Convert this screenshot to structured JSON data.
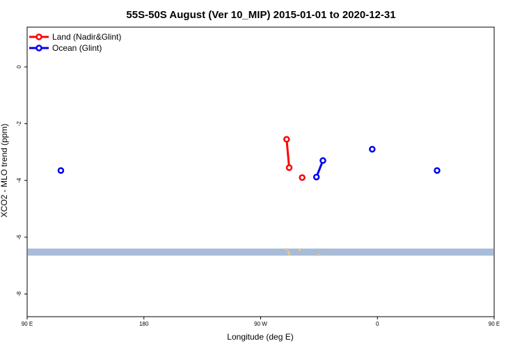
{
  "chart_data": {
    "type": "line",
    "title": "55S-50S August (Ver 10_MIP)   2015-01-01 to 2020-12-31",
    "xlabel": "Longitude (deg E)",
    "ylabel": "XCO2 - MLO trend (ppm)",
    "xlim": [
      90,
      450
    ],
    "ylim": [
      -8.8,
      1.4
    ],
    "x_ticks": [
      {
        "value": 90,
        "label": "90 E"
      },
      {
        "value": 180,
        "label": "180"
      },
      {
        "value": 270,
        "label": "90 W"
      },
      {
        "value": 360,
        "label": "0"
      },
      {
        "value": 450,
        "label": "90 E"
      }
    ],
    "x_ticks_minor": [
      450
    ],
    "x_ticks_minor_labels": [
      "180"
    ],
    "y_ticks": [
      {
        "value": 0,
        "label": "0"
      },
      {
        "value": -2,
        "label": "-2"
      },
      {
        "value": -4,
        "label": "-4"
      },
      {
        "value": -6,
        "label": "-6"
      },
      {
        "value": -8,
        "label": "-8"
      }
    ],
    "grid": false,
    "legend_position": "top-left",
    "series": [
      {
        "name": "Land (Nadir&Glint)",
        "color": "#ff0000",
        "segments": [
          [
            {
              "x": 290,
              "y": -2.55
            },
            {
              "x": 292,
              "y": -3.55
            }
          ],
          [
            {
              "x": 302,
              "y": -3.9
            }
          ]
        ]
      },
      {
        "name": "Ocean (Glint)",
        "color": "#0000ee",
        "segments": [
          [
            {
              "x": 116,
              "y": -3.65
            }
          ],
          [
            {
              "x": 313,
              "y": -3.88
            },
            {
              "x": 318,
              "y": -3.3
            }
          ],
          [
            {
              "x": 356,
              "y": -2.9
            }
          ],
          [
            {
              "x": 406,
              "y": -3.65
            }
          ]
        ]
      }
    ],
    "background_band": {
      "y_from": -6.65,
      "y_to": -6.4,
      "color": "#a8bcd8"
    },
    "band_marks_color": "#f2c97a"
  }
}
